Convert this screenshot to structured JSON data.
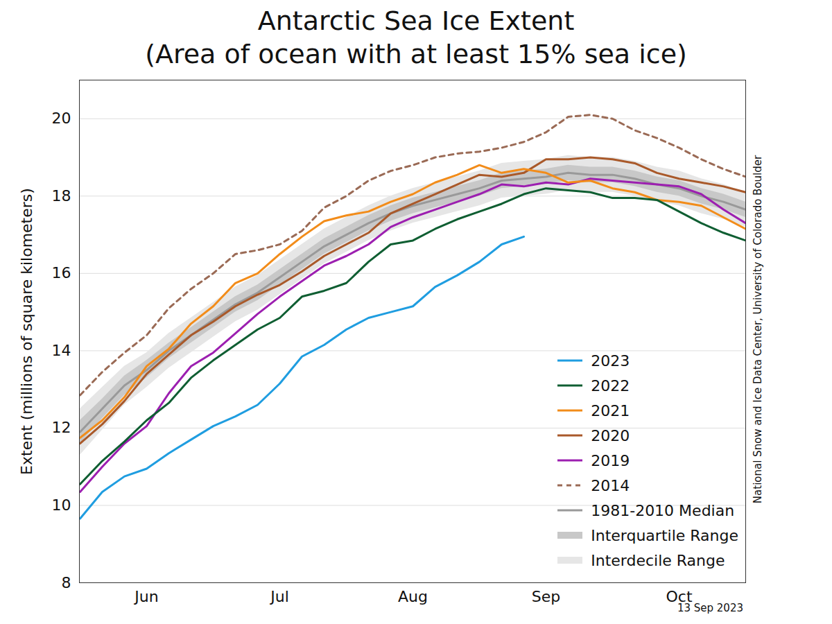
{
  "chart_data": {
    "type": "line",
    "title": "Antarctic Sea Ice Extent",
    "subtitle": "(Area of ocean with at least 15% sea ice)",
    "y_label": "Extent (millions of square kilometers)",
    "source": "National Snow and Ice Data Center, University of Colorado Boulder",
    "date": "13 Sep 2023",
    "categories": [
      null,
      null,
      null,
      "Jun",
      null,
      null,
      null,
      null,
      null,
      "Jul",
      null,
      null,
      null,
      null,
      null,
      "Aug",
      null,
      null,
      null,
      null,
      null,
      "Sep",
      null,
      null,
      null,
      null,
      null,
      "Oct",
      null,
      null,
      null
    ],
    "ylim": [
      8,
      21
    ],
    "yticks": [
      8,
      10,
      12,
      14,
      16,
      18,
      20
    ],
    "grid": true,
    "legend": "lower right",
    "series": [
      {
        "name": "2023",
        "color": "#1f9de0",
        "line_style": "solid",
        "values": [
          9.66,
          10.35,
          10.75,
          10.95,
          11.35,
          11.7,
          12.05,
          12.3,
          12.6,
          13.15,
          13.85,
          14.15,
          14.55,
          14.85,
          15.0,
          15.15,
          15.65,
          15.95,
          16.3,
          16.75,
          16.95,
          null,
          null,
          null,
          null,
          null,
          null,
          null,
          null,
          null,
          null
        ]
      },
      {
        "name": "2022",
        "color": "#0f5e32",
        "line_style": "solid",
        "values": [
          10.55,
          11.15,
          11.65,
          12.2,
          12.65,
          13.3,
          13.75,
          14.15,
          14.55,
          14.85,
          15.4,
          15.55,
          15.75,
          16.3,
          16.75,
          16.85,
          17.15,
          17.4,
          17.6,
          17.8,
          18.05,
          18.2,
          18.15,
          18.1,
          17.95,
          17.95,
          17.9,
          17.6,
          17.3,
          17.05,
          16.85
        ]
      },
      {
        "name": "2021",
        "color": "#f28c1a",
        "line_style": "solid",
        "values": [
          11.75,
          12.2,
          12.8,
          13.6,
          14.05,
          14.7,
          15.15,
          15.75,
          16.0,
          16.5,
          16.95,
          17.35,
          17.5,
          17.6,
          17.85,
          18.05,
          18.35,
          18.55,
          18.8,
          18.6,
          18.7,
          18.6,
          18.35,
          18.4,
          18.2,
          18.1,
          17.9,
          17.85,
          17.75,
          17.45,
          17.15
        ]
      },
      {
        "name": "2020",
        "color": "#a9592a",
        "line_style": "solid",
        "values": [
          11.6,
          12.1,
          12.7,
          13.4,
          13.9,
          14.4,
          14.75,
          15.15,
          15.45,
          15.7,
          16.05,
          16.45,
          16.75,
          17.05,
          17.55,
          17.8,
          18.05,
          18.3,
          18.55,
          18.5,
          18.6,
          18.95,
          18.95,
          19.0,
          18.95,
          18.85,
          18.6,
          18.45,
          18.35,
          18.25,
          18.1
        ]
      },
      {
        "name": "2019",
        "color": "#9c1fb0",
        "line_style": "solid",
        "values": [
          10.35,
          11.0,
          11.6,
          12.05,
          12.9,
          13.6,
          13.95,
          14.45,
          14.95,
          15.4,
          15.8,
          16.2,
          16.45,
          16.75,
          17.2,
          17.45,
          17.65,
          17.85,
          18.05,
          18.3,
          18.25,
          18.35,
          18.3,
          18.45,
          18.4,
          18.35,
          18.3,
          18.25,
          18.05,
          17.65,
          17.3
        ]
      },
      {
        "name": "2014",
        "color": "#9a6a55",
        "line_style": "dashed",
        "values": [
          12.85,
          13.45,
          13.95,
          14.4,
          15.1,
          15.6,
          16.0,
          16.5,
          16.6,
          16.75,
          17.1,
          17.7,
          18.0,
          18.4,
          18.65,
          18.8,
          19.0,
          19.1,
          19.15,
          19.25,
          19.4,
          19.65,
          20.05,
          20.1,
          20.0,
          19.7,
          19.5,
          19.25,
          18.95,
          18.7,
          18.5
        ]
      },
      {
        "name": "1981-2010 Median",
        "color": "#999999",
        "line_style": "solid",
        "values": [
          11.9,
          12.5,
          13.1,
          13.5,
          14.0,
          14.4,
          14.8,
          15.2,
          15.5,
          15.9,
          16.3,
          16.7,
          17.0,
          17.3,
          17.55,
          17.75,
          17.9,
          18.05,
          18.2,
          18.4,
          18.45,
          18.5,
          18.6,
          18.55,
          18.55,
          18.45,
          18.3,
          18.2,
          18.0,
          17.85,
          17.65
        ]
      },
      {
        "name": "Interquartile Range",
        "color": "#c8c8c8",
        "type": "area",
        "lower": [
          11.6,
          12.25,
          12.85,
          13.3,
          13.8,
          14.2,
          14.6,
          15.0,
          15.3,
          15.7,
          16.1,
          16.5,
          16.8,
          17.1,
          17.35,
          17.55,
          17.7,
          17.85,
          18.0,
          18.2,
          18.25,
          18.3,
          18.4,
          18.35,
          18.35,
          18.25,
          18.1,
          18.0,
          17.8,
          17.65,
          17.45
        ],
        "upper": [
          12.2,
          12.75,
          13.35,
          13.75,
          14.2,
          14.6,
          15.0,
          15.4,
          15.7,
          16.1,
          16.5,
          16.9,
          17.2,
          17.5,
          17.75,
          17.95,
          18.1,
          18.25,
          18.4,
          18.6,
          18.65,
          18.7,
          18.8,
          18.75,
          18.75,
          18.65,
          18.5,
          18.4,
          18.2,
          18.05,
          17.85
        ]
      },
      {
        "name": "Interdecile Range",
        "color": "#e6e6e6",
        "type": "area",
        "lower": [
          11.3,
          11.95,
          12.6,
          13.05,
          13.55,
          13.95,
          14.35,
          14.75,
          15.05,
          15.45,
          15.85,
          16.25,
          16.55,
          16.85,
          17.1,
          17.3,
          17.45,
          17.6,
          17.75,
          17.95,
          18.0,
          18.05,
          18.15,
          18.1,
          18.1,
          18.0,
          17.85,
          17.75,
          17.55,
          17.4,
          17.2
        ],
        "upper": [
          12.5,
          13.05,
          13.6,
          13.95,
          14.45,
          14.85,
          15.25,
          15.65,
          15.95,
          16.35,
          16.75,
          17.15,
          17.45,
          17.75,
          18.0,
          18.2,
          18.35,
          18.5,
          18.65,
          18.85,
          18.9,
          18.95,
          19.05,
          19.0,
          19.0,
          18.9,
          18.75,
          18.65,
          18.45,
          18.3,
          18.1
        ]
      }
    ]
  }
}
